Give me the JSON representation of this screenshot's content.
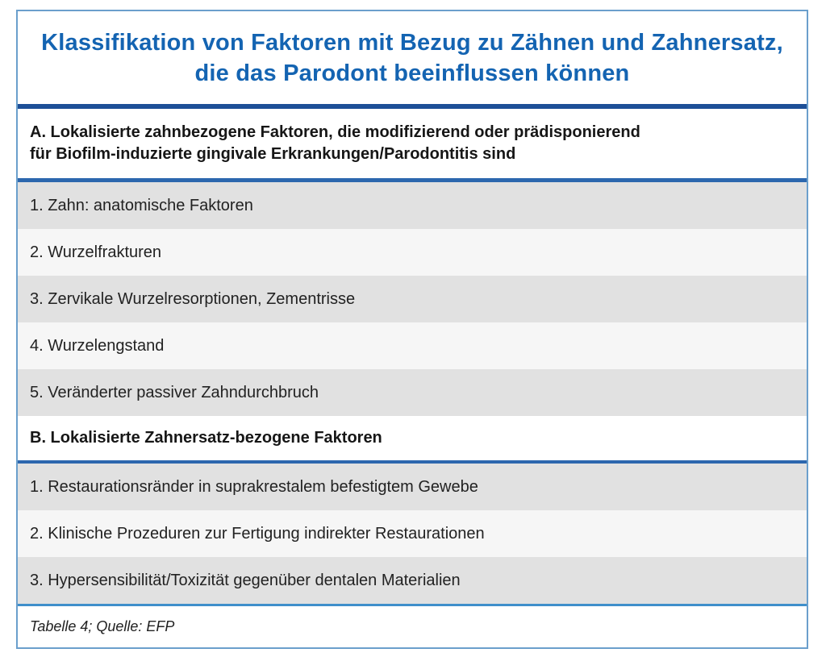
{
  "document": {
    "title_line1": "Klassifikation von Faktoren mit Bezug zu Zähnen und Zahnersatz,",
    "title_line2": "die das Parodont beeinflussen können"
  },
  "sections": [
    {
      "label": "A",
      "header_line1": "A. Lokalisierte zahnbezogene Faktoren, die modifizierend oder prädisponierend",
      "header_line2": "für Biofilm-induzierte gingivale Erkrankungen/Parodontitis sind",
      "items": [
        "1. Zahn: anatomische Faktoren",
        "2. Wurzelfrakturen",
        "3. Zervikale Wurzelresorptionen, Zementrisse",
        "4. Wurzelengstand",
        "5. Veränderter passiver Zahndurchbruch"
      ]
    },
    {
      "label": "B",
      "header_line1": "B. Lokalisierte Zahnersatz-bezogene Faktoren",
      "items": [
        "1. Restaurationsränder in suprakrestalem befestigtem Gewebe",
        "2. Klinische Prozeduren zur Fertigung indirekter Restaurationen",
        "3. Hypersensibilität/Toxizität gegenüber dentalen Materialien"
      ]
    }
  ],
  "footer": {
    "caption": "Tabelle 4; Quelle: EFP"
  },
  "colors": {
    "title_blue": "#1464b2",
    "divider_dark_blue": "#1d4f97",
    "divider_medium_blue": "#2c67ae",
    "divider_light_blue": "#3f8fcb",
    "outer_border_blue": "#6b9fcc",
    "row_gray": "#e1e1e1",
    "row_light": "#f6f6f6",
    "text_dark": "#222222"
  }
}
